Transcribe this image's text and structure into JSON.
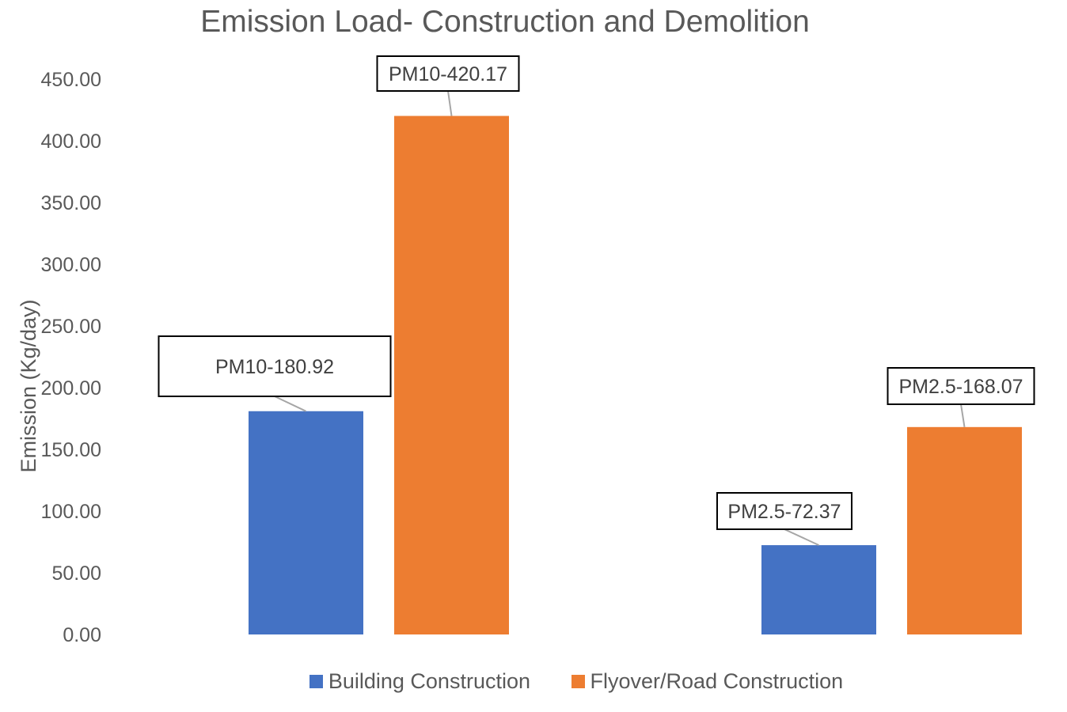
{
  "chart_data": {
    "type": "bar",
    "title": "Emission Load- Construction and Demolition",
    "xlabel": "",
    "ylabel": "Emission (Kg/day)",
    "ylim": [
      0,
      450
    ],
    "ytick_step": 50,
    "ytick_labels": [
      "0.00",
      "50.00",
      "100.00",
      "150.00",
      "200.00",
      "250.00",
      "300.00",
      "350.00",
      "400.00",
      "450.00"
    ],
    "categories": [
      "",
      ""
    ],
    "grid": false,
    "legend_position": "bottom",
    "series": [
      {
        "name": "Building Construction",
        "color": "#4472C4",
        "values": [
          180.92,
          72.37
        ]
      },
      {
        "name": "Flyover/Road Construction",
        "color": "#ED7D31",
        "values": [
          420.17,
          168.07
        ]
      }
    ],
    "data_labels": [
      [
        "PM10-180.92",
        "PM2.5-72.37"
      ],
      [
        "PM10-420.17",
        "PM2.5-168.07"
      ]
    ]
  }
}
